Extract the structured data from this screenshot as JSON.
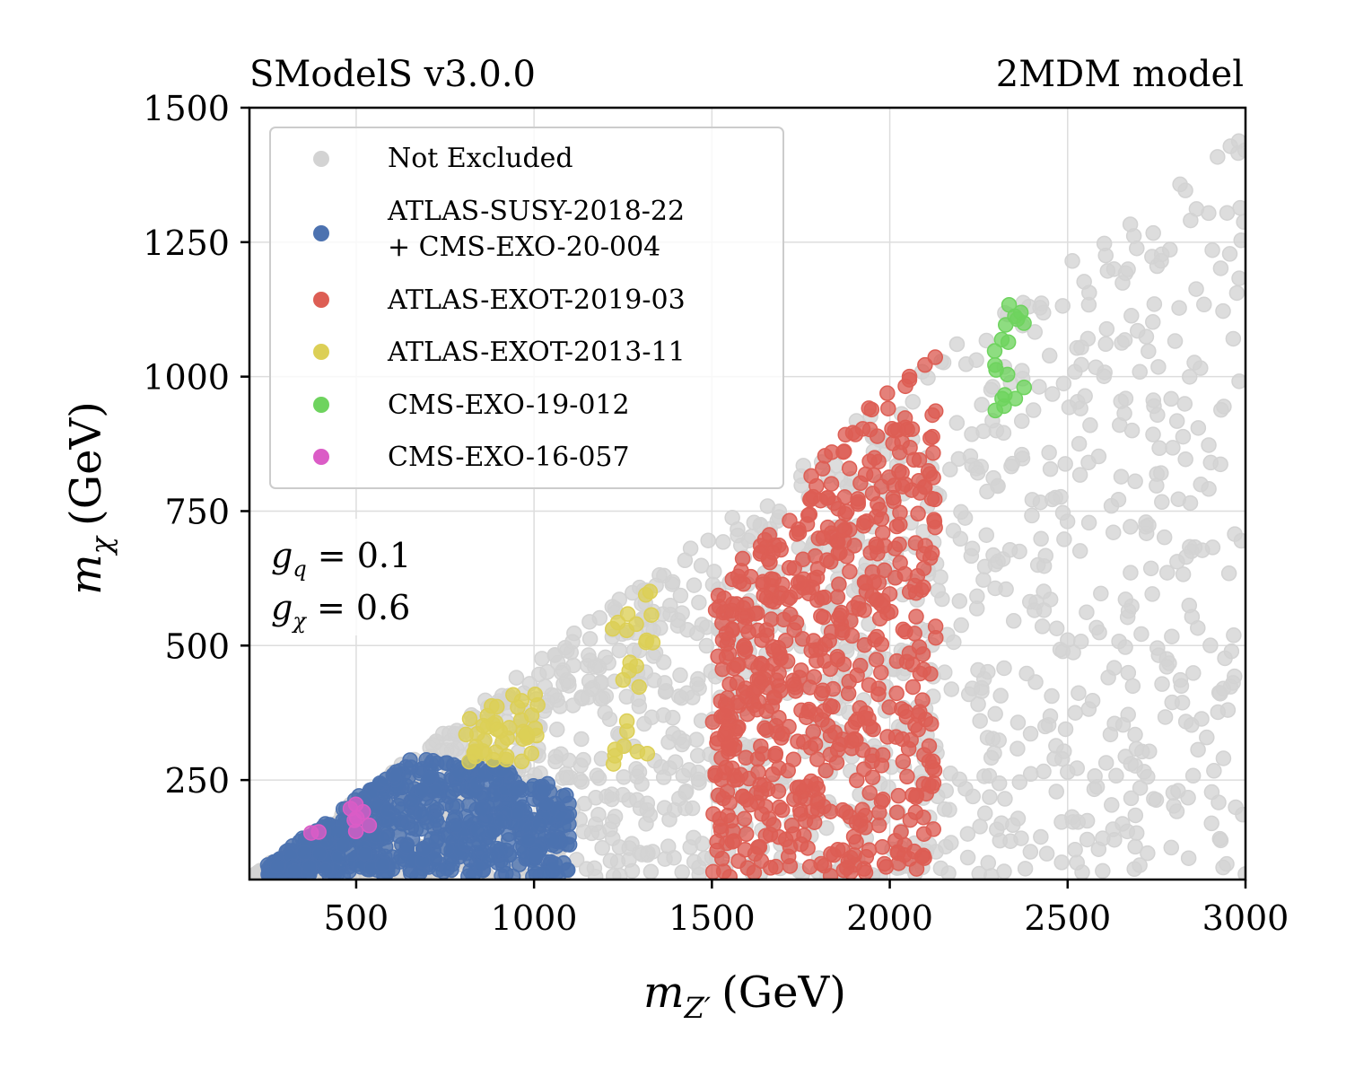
{
  "chart_data": {
    "type": "scatter",
    "title_left": "SModelS v3.0.0",
    "title_right": "2MDM model",
    "xlabel": "m_{Z'} (GeV)",
    "xlabel_main": "m",
    "xlabel_sub": "Z′",
    "xlabel_unit": "(GeV)",
    "ylabel": "m_χ (GeV)",
    "ylabel_main": "m",
    "ylabel_sub": "χ",
    "ylabel_unit": "(GeV)",
    "xlim": [
      200,
      3000
    ],
    "ylim": [
      65,
      1500
    ],
    "xticks": [
      500,
      1000,
      1500,
      2000,
      2500,
      3000
    ],
    "yticks": [
      250,
      500,
      750,
      1000,
      1250,
      1500
    ],
    "grid": true,
    "legend_position": "top-left",
    "annotation": {
      "line1_sym": "g",
      "line1_sub": "q",
      "line1_val": " = 0.1",
      "line2_sym": "g",
      "line2_sub": "χ",
      "line2_val": " = 0.6"
    },
    "series": [
      {
        "name": "Not Excluded",
        "color": "#d3d3d3",
        "region": {
          "x": [
            210,
            3000
          ],
          "ymin": 70,
          "diag_x": 210,
          "diag_y": 0.5,
          "n": 1500
        }
      },
      {
        "name": "ATLAS-SUSY-2018-22\n+ CMS-EXO-20-004",
        "label_line1": "ATLAS-SUSY-2018-22",
        "label_line2": "+ CMS-EXO-20-004",
        "color": "#4c72b0",
        "region": {
          "x": [
            250,
            1100
          ],
          "ymin": 70,
          "ymax": 290,
          "n": 700
        }
      },
      {
        "name": "ATLAS-EXOT-2019-03",
        "color": "#dd5e54",
        "region": {
          "x": [
            1500,
            2130
          ],
          "ymin": 70,
          "ymax": 1080,
          "n": 650
        }
      },
      {
        "name": "ATLAS-EXOT-2013-11",
        "color": "#dccf56",
        "region": {
          "x": [
            800,
            1340
          ],
          "ymin": 280,
          "ymax": 650,
          "n": 110
        }
      },
      {
        "name": "CMS-EXO-19-012",
        "color": "#6ed35e",
        "region": {
          "x": [
            2290,
            2380
          ],
          "ymin": 935,
          "ymax": 1150,
          "n": 18
        }
      },
      {
        "name": "CMS-EXO-16-057",
        "color": "#db5cc6",
        "region": {
          "x": [
            330,
            560
          ],
          "ymin": 150,
          "ymax": 265,
          "n": 10
        }
      }
    ]
  }
}
